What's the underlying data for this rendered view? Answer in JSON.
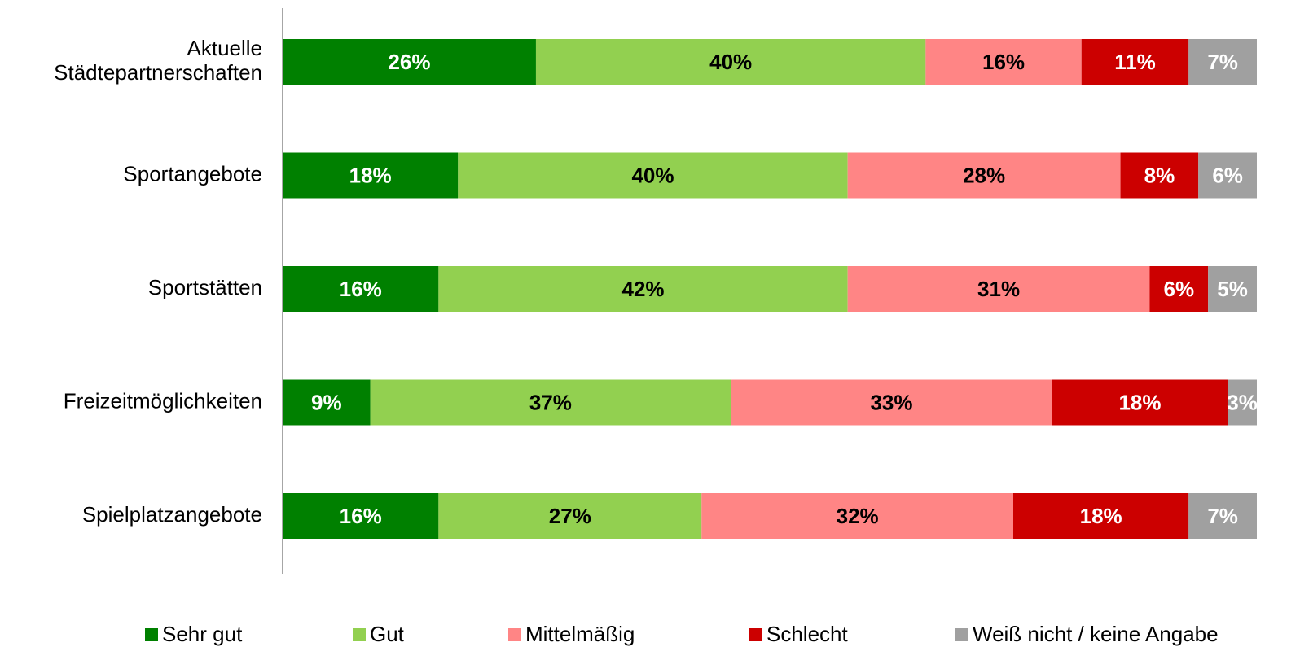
{
  "chart_data": {
    "type": "stacked-barh",
    "categories": [
      "Aktuelle\nStädtepartnerschaften",
      "Sportangebote",
      "Sportstätten",
      "Freizeitmöglichkeiten",
      "Spielplatzangebote"
    ],
    "xlim": [
      0,
      100
    ],
    "series": [
      {
        "name": "Sehr gut",
        "color": "#008000",
        "label_color": "#ffffff",
        "values": [
          26,
          18,
          16,
          9,
          16
        ],
        "value_labels": [
          "26%",
          "18%",
          "16%",
          "9%",
          "16%"
        ]
      },
      {
        "name": "Gut",
        "color": "#92d050",
        "label_color": "#000000",
        "values": [
          40,
          40,
          42,
          37,
          27
        ],
        "value_labels": [
          "40%",
          "40%",
          "42%",
          "37%",
          "27%"
        ]
      },
      {
        "name": "Mittelmäßig",
        "color": "#ff8585",
        "label_color": "#000000",
        "values": [
          16,
          28,
          31,
          33,
          32
        ],
        "value_labels": [
          "16%",
          "28%",
          "31%",
          "33%",
          "32%"
        ]
      },
      {
        "name": "Schlecht",
        "color": "#cc0000",
        "label_color": "#ffffff",
        "values": [
          11,
          8,
          6,
          18,
          18
        ],
        "value_labels": [
          "11%",
          "8%",
          "6%",
          "18%",
          "18%"
        ]
      },
      {
        "name": "Weiß nicht / keine Angabe",
        "color": "#a0a0a0",
        "label_color": "#ffffff",
        "values": [
          7,
          6,
          5,
          3,
          7
        ],
        "value_labels": [
          "7%",
          "6%",
          "5%",
          "3%",
          "7%"
        ]
      }
    ]
  }
}
